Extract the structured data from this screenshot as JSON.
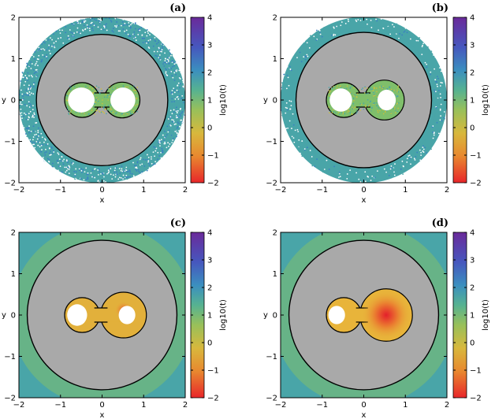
{
  "chart_data": [
    {
      "type": "heatmap",
      "panel": "(a)",
      "xlabel": "x",
      "ylabel": "y",
      "xlim": [
        -2,
        2
      ],
      "ylim": [
        -2,
        2
      ],
      "xticks": [
        "−2",
        "−1",
        "0",
        "1",
        "2"
      ],
      "yticks": [
        "−2",
        "−1",
        "0",
        "1",
        "2"
      ],
      "colorbar": {
        "label": "log10(t)",
        "range": [
          -2,
          4
        ],
        "ticks": [
          "−2",
          "−1",
          "0",
          "1",
          "2",
          "3",
          "4"
        ]
      },
      "outer_circle_radius": 1.58,
      "lobe_right_radius": 0.43,
      "region_outer_radius": 2.0,
      "outer_band_level": 1.7,
      "mid_band_level": 1.2
    },
    {
      "type": "heatmap",
      "panel": "(b)",
      "xlabel": "x",
      "ylabel": "y",
      "xlim": [
        -2,
        2
      ],
      "ylim": [
        -2,
        2
      ],
      "xticks": [
        "−2",
        "−1",
        "0",
        "1",
        "2"
      ],
      "yticks": [
        "−2",
        "−1",
        "0",
        "1",
        "2"
      ],
      "colorbar": {
        "label": "log10(t)",
        "range": [
          -2,
          4
        ],
        "ticks": [
          "−2",
          "−1",
          "0",
          "1",
          "2",
          "3",
          "4"
        ]
      },
      "outer_circle_radius": 1.63,
      "lobe_right_radius": 0.48,
      "region_outer_radius": 2.0,
      "outer_band_level": 1.3,
      "mid_band_level": 1.0
    },
    {
      "type": "heatmap",
      "panel": "(c)",
      "xlabel": "x",
      "ylabel": "y",
      "xlim": [
        -2,
        2
      ],
      "ylim": [
        -2,
        2
      ],
      "xticks": [
        "−2",
        "−1",
        "0",
        "1",
        "2"
      ],
      "yticks": [
        "−2",
        "−1",
        "0",
        "1",
        "2"
      ],
      "colorbar": {
        "label": "log10(t)",
        "range": [
          -2,
          4
        ],
        "ticks": [
          "−2",
          "−1",
          "0",
          "1",
          "2",
          "3",
          "4"
        ]
      },
      "outer_circle_radius": 1.8,
      "lobe_right_radius": 0.55,
      "region_outer_radius": 2.9,
      "outer_band_level": 1.0,
      "mid_band_level": 0.8
    },
    {
      "type": "heatmap",
      "panel": "(d)",
      "xlabel": "x",
      "ylabel": "y",
      "xlim": [
        -2,
        2
      ],
      "ylim": [
        -2,
        2
      ],
      "xticks": [
        "−2",
        "−1",
        "0",
        "1",
        "2"
      ],
      "yticks": [
        "−2",
        "−1",
        "0",
        "1",
        "2"
      ],
      "colorbar": {
        "label": "log10(t)",
        "range": [
          -2,
          4
        ],
        "ticks": [
          "−2",
          "−1",
          "0",
          "1",
          "2",
          "3",
          "4"
        ]
      },
      "outer_circle_radius": 1.8,
      "lobe_right_radius": 0.63,
      "region_outer_radius": 2.9,
      "outer_band_level": 1.0,
      "mid_band_level": 0.8
    }
  ],
  "colors": {
    "forbidden_region": "#a9a9a9",
    "colormap": [
      "#e8262a",
      "#e8b43a",
      "#cdbf3c",
      "#7fbf6b",
      "#49a5a8",
      "#3a7fc3",
      "#4f4bbe",
      "#6a2a9a"
    ]
  }
}
